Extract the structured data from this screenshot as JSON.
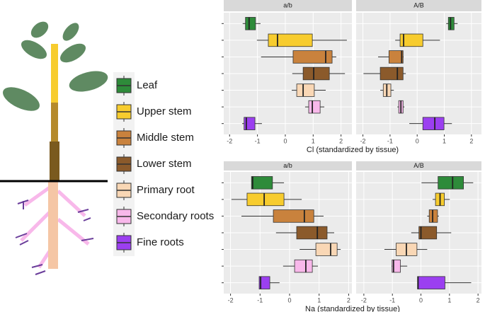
{
  "legend": {
    "labels": [
      "Leaf",
      "Upper stem",
      "Middle stem",
      "Lower stem",
      "Primary root",
      "Secondary roots",
      "Fine roots"
    ],
    "colors": [
      "#2e8b3a",
      "#f7cc2e",
      "#c9823d",
      "#8b5a2b",
      "#f9d7b5",
      "#f8b8ea",
      "#9b3ff0"
    ]
  },
  "chart_data": [
    {
      "type": "box",
      "title": "a/b",
      "x_label": "Cl (standardized by tissue)",
      "xlim": [
        -2.21,
        2.39
      ],
      "xticks": [
        -2,
        -1,
        0,
        1,
        2
      ],
      "whisker_low": [
        -1.53,
        -1.02,
        -0.87,
        0.25,
        0.23,
        0.71,
        -1.55
      ],
      "q1": [
        -1.43,
        -0.61,
        0.28,
        0.64,
        0.41,
        0.84,
        -1.48
      ],
      "median": [
        -1.3,
        -0.28,
        1.45,
        1.02,
        0.64,
        0.97,
        -1.4
      ],
      "q3": [
        -1.07,
        0.97,
        1.68,
        1.58,
        1.04,
        1.25,
        -1.09
      ],
      "whisker_high": [
        -0.89,
        2.21,
        1.83,
        2.14,
        1.45,
        1.4,
        -0.84
      ]
    },
    {
      "type": "box",
      "title": "A/B",
      "xlim": [
        -2.25,
        2.37
      ],
      "xticks": [
        -2,
        -1,
        0,
        1,
        2
      ],
      "whisker_low": [
        1.07,
        -0.81,
        -1.44,
        -1.98,
        -1.36,
        -0.73,
        -0.29
      ],
      "q1": [
        1.15,
        -0.63,
        -1.04,
        -1.36,
        -1.25,
        -0.68,
        0.21
      ],
      "median": [
        1.23,
        -0.5,
        -0.57,
        -0.73,
        -1.12,
        -0.6,
        0.65
      ],
      "q3": [
        1.36,
        0.21,
        -0.52,
        -0.52,
        -0.97,
        -0.52,
        0.99
      ],
      "whisker_high": [
        1.49,
        0.84,
        -0.5,
        -0.42,
        -0.86,
        -0.47,
        1.28
      ]
    },
    {
      "type": "box",
      "title": "a/b",
      "x_label": "Na (standardized by tissue)",
      "xlim": [
        -2.23,
        2.11
      ],
      "xticks": [
        -2,
        -1,
        0,
        1,
        2
      ],
      "whisker_low": [
        -1.29,
        -1.97,
        -1.63,
        -0.46,
        0.34,
        -0.22,
        -1.03
      ],
      "q1": [
        -1.29,
        -1.44,
        -0.55,
        0.24,
        0.89,
        0.17,
        -1.03
      ],
      "median": [
        -1.25,
        -0.86,
        0.5,
        0.94,
        1.39,
        0.55,
        -0.98
      ],
      "q3": [
        -0.58,
        -0.19,
        0.82,
        1.27,
        1.61,
        0.77,
        -0.67
      ],
      "whisker_high": [
        -0.19,
        0.41,
        1.15,
        1.51,
        1.73,
        0.96,
        -0.34
      ]
    },
    {
      "type": "box",
      "title": "A/B",
      "xlim": [
        -2.27,
        2.12
      ],
      "xticks": [
        -2,
        -1,
        0,
        1,
        2
      ],
      "whisker_low": [
        0.02,
        0.41,
        0.22,
        -0.34,
        -1.28,
        -1.03,
        -0.12
      ],
      "q1": [
        0.6,
        0.51,
        0.29,
        -0.07,
        -0.87,
        -1.01,
        -0.12
      ],
      "median": [
        1.11,
        0.67,
        0.41,
        0.0,
        -0.51,
        -0.96,
        -0.1
      ],
      "q3": [
        1.49,
        0.82,
        0.58,
        0.55,
        -0.14,
        -0.72,
        0.84
      ],
      "whisker_high": [
        1.83,
        1.01,
        0.63,
        1.06,
        0.22,
        -0.48,
        1.76
      ]
    }
  ]
}
